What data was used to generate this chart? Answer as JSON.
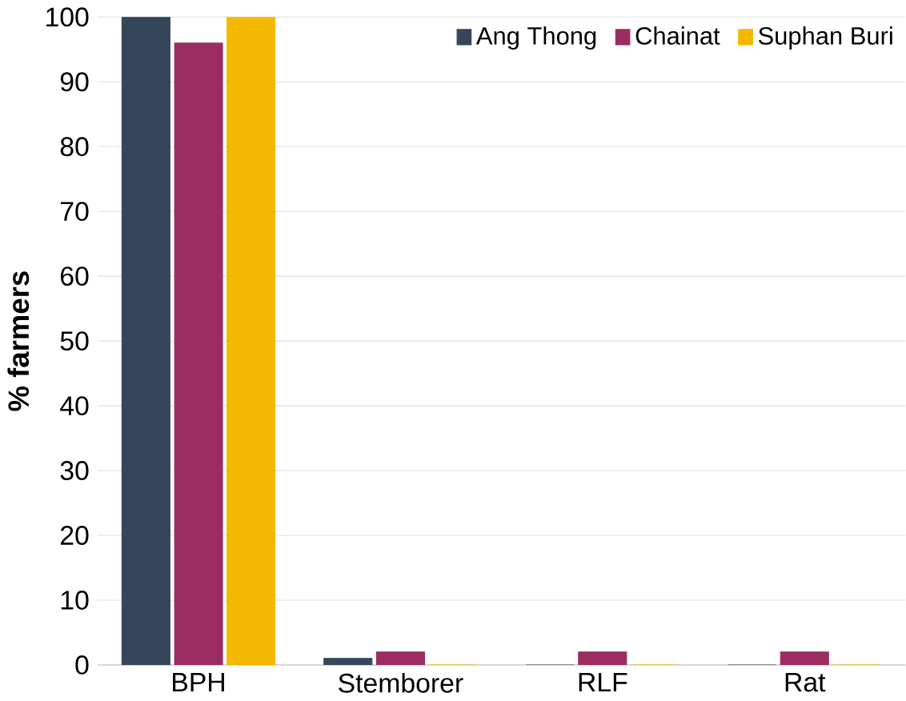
{
  "chart_data": {
    "type": "bar",
    "ylabel": "% farmers",
    "categories": [
      "BPH",
      "Stemborer",
      "RLF",
      "Rat"
    ],
    "series": [
      {
        "name": "Ang Thong",
        "color": "#36465a",
        "values": [
          100,
          1,
          0,
          0
        ]
      },
      {
        "name": "Chainat",
        "color": "#9b2d62",
        "values": [
          96,
          2,
          2,
          2
        ]
      },
      {
        "name": "Suphan Buri",
        "color": "#f5b800",
        "values": [
          100,
          0,
          0,
          0
        ]
      }
    ],
    "ylim": [
      0,
      100
    ],
    "yticks": [
      0,
      10,
      20,
      30,
      40,
      50,
      60,
      70,
      80,
      90,
      100
    ],
    "grid": "y",
    "legend": "top right"
  }
}
